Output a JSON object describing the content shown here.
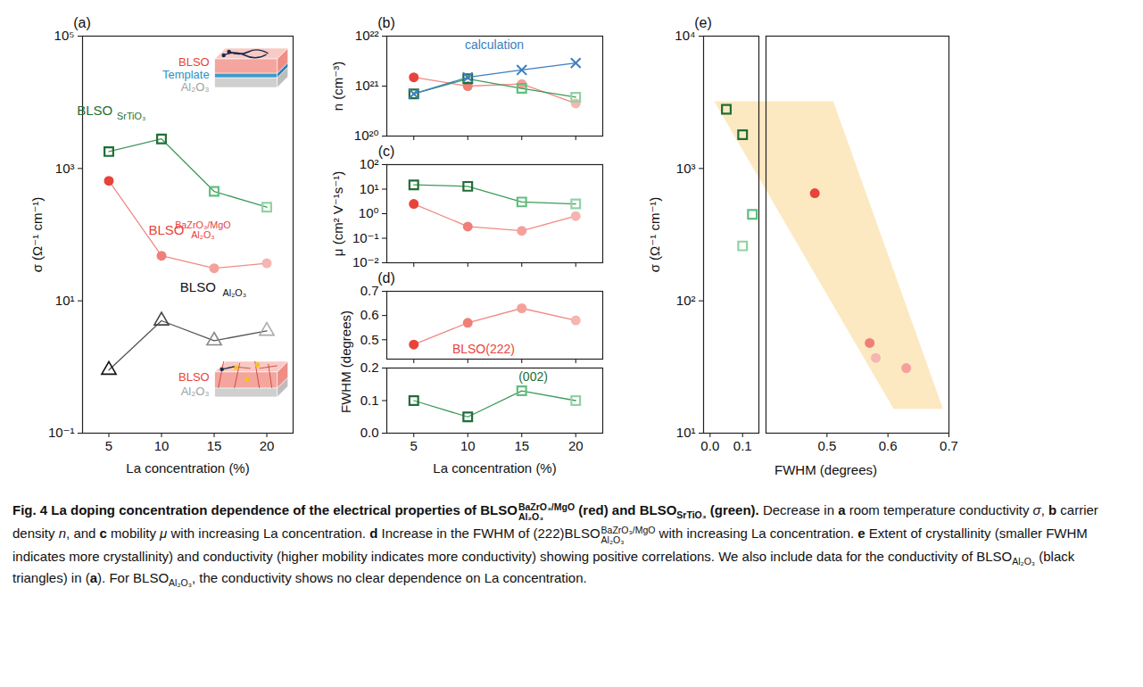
{
  "chart_data": [
    {
      "panel": "(a)",
      "type": "line",
      "log": "y",
      "xlabel": "La concentration (%)",
      "ylabel": "σ (Ω⁻¹ cm⁻¹)",
      "x": [
        5,
        10,
        15,
        20
      ],
      "xlim": [
        2.5,
        22.5
      ],
      "xticks": [
        5,
        10,
        15,
        20
      ],
      "ylim": [
        0.1,
        100000
      ],
      "yticks": [
        {
          "value": 0.1,
          "label": "10⁻¹"
        },
        {
          "value": 10,
          "label": "10¹"
        },
        {
          "value": 1000,
          "label": "10³"
        },
        {
          "value": 100000,
          "label": "10⁵"
        }
      ],
      "series": [
        {
          "name": "BLSO",
          "name_sub": "SrTiO₃",
          "color": "#3f9a5c",
          "colors": [
            "#1f6e36",
            "#1f6e36",
            "#5fbf7d",
            "#8fd3a3"
          ],
          "marker": "square_open",
          "values": [
            1800,
            2800,
            450,
            260
          ]
        },
        {
          "name": "BLSO",
          "name_sub": "Al₂O₃",
          "name_sup": "BaZrO₃/MgO",
          "color": "#f08a84",
          "colors": [
            "#e8433b",
            "#f07f78",
            "#f4a19b",
            "#f6b5b0"
          ],
          "marker": "circle",
          "values": [
            650,
            48,
            31,
            37
          ]
        },
        {
          "name": "BLSO",
          "name_sub": "Al₂O₃",
          "color": "#555555",
          "colors": [
            "#111111",
            "#444444",
            "#888888",
            "#aaaaaa"
          ],
          "marker": "triangle_open",
          "values": [
            0.9,
            5,
            2.5,
            3.5
          ]
        }
      ],
      "insets": [
        {
          "labels": [
            {
              "text": "BLSO",
              "color": "#e8433b"
            },
            {
              "text": "Template",
              "color": "#2f8fc0"
            },
            {
              "text": "Al₂O₃",
              "color": "#a0a0a0"
            }
          ]
        },
        {
          "labels": [
            {
              "text": "BLSO",
              "color": "#e8433b"
            },
            {
              "text": "Al₂O₃",
              "color": "#a0a0a0"
            }
          ]
        }
      ]
    },
    {
      "panel": "(b)",
      "type": "line",
      "log": "y",
      "tick_labels": "y",
      "ylabel": "n (cm⁻³)",
      "x": [
        5,
        10,
        15,
        20
      ],
      "xlim": [
        2.5,
        22.5
      ],
      "xticks": [
        5,
        10,
        15,
        20
      ],
      "ylim": [
        1e+20,
        1e+22
      ],
      "yticks": [
        {
          "value": 1e+20,
          "label": "10²⁰"
        },
        {
          "value": 1e+21,
          "label": "10²¹"
        },
        {
          "value": 1e+22,
          "label": "10²²"
        }
      ],
      "series": [
        {
          "color": "#f08a84",
          "colors": [
            "#e8433b",
            "#f07f78",
            "#f4a19b",
            "#f6b5b0"
          ],
          "marker": "circle",
          "values": [
            1.5e+21,
            1e+21,
            1.1e+21,
            4.5e+20
          ]
        },
        {
          "color": "#3f9a5c",
          "colors": [
            "#1f6e36",
            "#1f6e36",
            "#5fbf7d",
            "#8fd3a3"
          ],
          "marker": "square_open",
          "values": [
            7e+20,
            1.4e+21,
            9e+20,
            6e+20
          ]
        },
        {
          "name": "calculation",
          "color": "#3b7fc0",
          "marker": "times",
          "values": [
            7e+20,
            1.5e+21,
            2.1e+21,
            2.9e+21
          ]
        }
      ]
    },
    {
      "panel": "(c)",
      "type": "line",
      "log": "y",
      "tick_labels": "y",
      "ylabel": "μ (cm² V⁻¹s⁻¹)",
      "x": [
        5,
        10,
        15,
        20
      ],
      "xlim": [
        2.5,
        22.5
      ],
      "xticks": [
        5,
        10,
        15,
        20
      ],
      "ylim": [
        0.01,
        100
      ],
      "yticks": [
        {
          "value": 0.01,
          "label": "10⁻²"
        },
        {
          "value": 0.1,
          "label": "10⁻¹"
        },
        {
          "value": 1,
          "label": "10⁰"
        },
        {
          "value": 10,
          "label": "10¹"
        },
        {
          "value": 100,
          "label": "10²"
        }
      ],
      "series": [
        {
          "color": "#f08a84",
          "colors": [
            "#e8433b",
            "#f07f78",
            "#f4a19b",
            "#f6b5b0"
          ],
          "marker": "circle",
          "values": [
            2.5,
            0.3,
            0.2,
            0.8
          ]
        },
        {
          "color": "#3f9a5c",
          "colors": [
            "#1f6e36",
            "#1f6e36",
            "#5fbf7d",
            "#8fd3a3"
          ],
          "marker": "square_open",
          "values": [
            15,
            13,
            3,
            2.5
          ]
        }
      ]
    },
    {
      "panel": "(d)",
      "type": "line",
      "xlabel": "La concentration (%)",
      "ylabel": "FWHM (degrees)",
      "x": [
        5,
        10,
        15,
        20
      ],
      "xlim": [
        2.5,
        22.5
      ],
      "xticks": [
        5,
        10,
        15,
        20
      ],
      "y_segments": [
        {
          "ylim": [
            0.42,
            0.7
          ],
          "yticks": [
            0.5,
            0.6,
            0.7
          ]
        },
        {
          "ylim": [
            0,
            0.2
          ],
          "yticks": [
            {
              "value": 0,
              "label": "0.0"
            },
            0.1,
            0.2
          ]
        }
      ],
      "series": [
        {
          "name": "BLSO(222)",
          "color": "#f08a84",
          "colors": [
            "#e8433b",
            "#f07f78",
            "#f4a19b",
            "#f6b5b0"
          ],
          "marker": "circle",
          "values": [
            0.48,
            0.57,
            0.63,
            0.58
          ]
        },
        {
          "name": "(002)",
          "color": "#3f9a5c",
          "colors": [
            "#1f6e36",
            "#1f6e36",
            "#5fbf7d",
            "#8fd3a3"
          ],
          "marker": "square_open",
          "values": [
            0.1,
            0.05,
            0.13,
            0.1
          ]
        }
      ]
    },
    {
      "panel": "(e)",
      "type": "scatter",
      "log": "y",
      "xlabel": "FWHM (degrees)",
      "ylabel": "σ (Ω⁻¹ cm⁻¹)",
      "x_segments": [
        {
          "xlim": [
            -0.02,
            0.15
          ],
          "xticks": [
            {
              "value": 0,
              "label": "0.0"
            },
            0.1
          ]
        },
        {
          "xlim": [
            0.4,
            0.7
          ],
          "xticks": [
            0.5,
            0.6,
            0.7
          ]
        }
      ],
      "ylim": [
        10,
        10000
      ],
      "yticks": [
        {
          "value": 10,
          "label": "10¹"
        },
        {
          "value": 100,
          "label": "10²"
        },
        {
          "value": 1000,
          "label": "10³"
        },
        {
          "value": 10000,
          "label": "10⁴"
        }
      ],
      "series": [
        {
          "x": [
            0.1,
            0.05,
            0.13,
            0.1
          ],
          "colors": [
            "#1f6e36",
            "#1f6e36",
            "#5fbf7d",
            "#8fd3a3"
          ],
          "marker": "square_open",
          "values": [
            1800,
            2800,
            450,
            260
          ]
        },
        {
          "x": [
            0.48,
            0.57,
            0.63,
            0.58
          ],
          "colors": [
            "#e8433b",
            "#f07f78",
            "#f4a19b",
            "#f6b5b0"
          ],
          "marker": "circle",
          "values": [
            650,
            48,
            31,
            37
          ]
        }
      ]
    }
  ],
  "caption": [
    {
      "text": "Fig. 4 La doping concentration dependence of the electrical properties of ",
      "bold": true
    },
    {
      "text": "BLSO",
      "sub": "Al₂O₃",
      "sup": "BaZrO₃/MgO",
      "bold": true
    },
    {
      "text": " (red) and ",
      "bold": true
    },
    {
      "text": "BLSO",
      "sub": "SrTiO₃",
      "bold": true
    },
    {
      "text": " (green).",
      "bold": true
    },
    {
      "text": " Decrease in "
    },
    {
      "text": "a",
      "bold": true
    },
    {
      "text": " room temperature conductivity "
    },
    {
      "text": "σ",
      "italic": true
    },
    {
      "text": ", "
    },
    {
      "text": "b",
      "bold": true
    },
    {
      "text": " carrier density "
    },
    {
      "text": "n",
      "italic": true
    },
    {
      "text": ", and "
    },
    {
      "text": "c",
      "bold": true
    },
    {
      "text": " mobility "
    },
    {
      "text": "μ",
      "italic": true
    },
    {
      "text": " with increasing La concentration. "
    },
    {
      "text": "d",
      "bold": true
    },
    {
      "text": " Increase in the FWHM of (222)"
    },
    {
      "text": "BLSO",
      "sub": "Al₂O₃",
      "sup": "BaZrO₃/MgO"
    },
    {
      "text": " with increasing La concentration. "
    },
    {
      "text": "e",
      "bold": true
    },
    {
      "text": " Extent of crystallinity (smaller FWHM indicates more crystallinity) and conductivity (higher mobility indicates more conductivity) showing positive correlations. We also include data for the conductivity of "
    },
    {
      "text": "BLSO",
      "sub": "Al₂O₃"
    },
    {
      "text": " (black triangles) in ("
    },
    {
      "text": "a",
      "bold": true
    },
    {
      "text": "). For "
    },
    {
      "text": "BLSO",
      "sub": "Al₂O₃"
    },
    {
      "text": ", the conductivity shows no clear dependence on La concentration."
    }
  ]
}
